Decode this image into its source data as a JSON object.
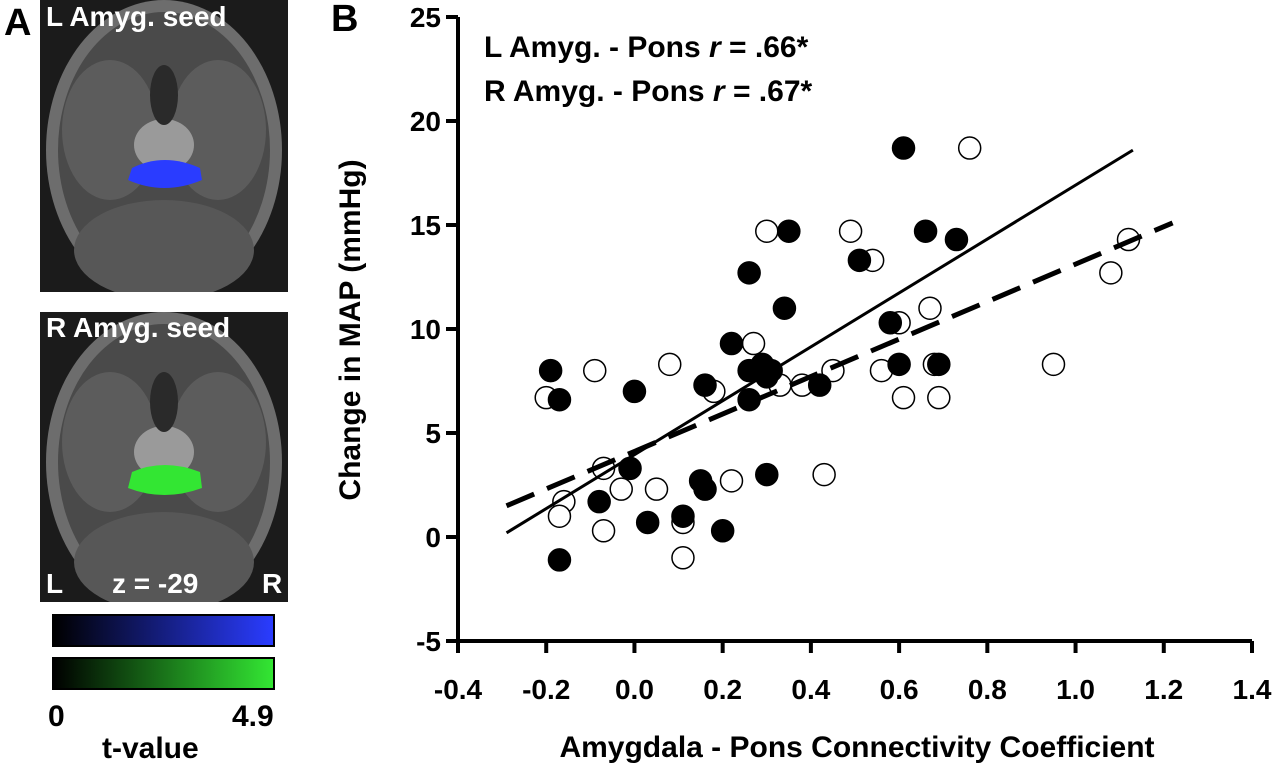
{
  "panel_a": {
    "label": "A",
    "top_seed_label": "L Amyg. seed",
    "bottom_seed_label": "R Amyg. seed",
    "orientation_left": "L",
    "orientation_right": "R",
    "slice_label": "z = -29",
    "colorbar": {
      "min_label": "0",
      "max_label": "4.9",
      "title": "t-value",
      "left_seed_color": "#2a3cff",
      "right_seed_color": "#33e633"
    }
  },
  "panel_b": {
    "label": "B",
    "annotation_line1_prefix": "L Amyg. - Pons ",
    "annotation_line2_prefix": "R Amyg. - Pons ",
    "annotation_r_symbol": "r",
    "annotation_line1_value": " = .66*",
    "annotation_line2_value": " = .67*"
  },
  "chart_data": {
    "type": "scatter",
    "xlabel": "Amygdala - Pons Connectivity Coefficient",
    "ylabel": "Change in MAP (mmHg)",
    "xlim": [
      -0.4,
      1.4
    ],
    "ylim": [
      -5,
      25
    ],
    "xticks": [
      -0.4,
      -0.2,
      0.0,
      0.2,
      0.4,
      0.6,
      0.8,
      1.0,
      1.2,
      1.4
    ],
    "xtick_labels": [
      "-0.4",
      "-0.2",
      "0.0",
      "0.2",
      "0.4",
      "0.6",
      "0.8",
      "1.0",
      "1.2",
      "1.4"
    ],
    "yticks": [
      -5,
      0,
      5,
      10,
      15,
      20,
      25
    ],
    "ytick_labels": [
      "-5",
      "0",
      "5",
      "10",
      "15",
      "20",
      "25"
    ],
    "series": [
      {
        "marker": "filled-circle",
        "color": "#000000",
        "points": [
          [
            -0.19,
            8.0
          ],
          [
            -0.17,
            6.6
          ],
          [
            -0.17,
            -1.1
          ],
          [
            -0.08,
            1.7
          ],
          [
            0.0,
            7.0
          ],
          [
            -0.01,
            3.3
          ],
          [
            0.03,
            0.7
          ],
          [
            0.11,
            1.0
          ],
          [
            0.16,
            7.3
          ],
          [
            0.15,
            2.7
          ],
          [
            0.16,
            2.3
          ],
          [
            0.2,
            0.3
          ],
          [
            0.22,
            9.3
          ],
          [
            0.26,
            12.7
          ],
          [
            0.26,
            8.0
          ],
          [
            0.26,
            6.6
          ],
          [
            0.29,
            8.3
          ],
          [
            0.3,
            7.7
          ],
          [
            0.31,
            8.0
          ],
          [
            0.3,
            3.0
          ],
          [
            0.34,
            11.0
          ],
          [
            0.35,
            14.7
          ],
          [
            0.42,
            7.3
          ],
          [
            0.51,
            13.3
          ],
          [
            0.58,
            10.3
          ],
          [
            0.6,
            8.3
          ],
          [
            0.61,
            18.7
          ],
          [
            0.66,
            14.7
          ],
          [
            0.69,
            8.3
          ],
          [
            0.73,
            14.3
          ]
        ]
      },
      {
        "marker": "open-circle",
        "color": "#000000",
        "points": [
          [
            -0.2,
            6.7
          ],
          [
            -0.16,
            1.7
          ],
          [
            -0.17,
            1.0
          ],
          [
            -0.09,
            8.0
          ],
          [
            -0.07,
            0.3
          ],
          [
            -0.07,
            3.3
          ],
          [
            -0.03,
            2.3
          ],
          [
            0.05,
            2.3
          ],
          [
            0.08,
            8.3
          ],
          [
            0.11,
            0.7
          ],
          [
            0.11,
            -1.0
          ],
          [
            0.18,
            7.0
          ],
          [
            0.22,
            2.7
          ],
          [
            0.27,
            9.3
          ],
          [
            0.3,
            14.7
          ],
          [
            0.33,
            7.3
          ],
          [
            0.38,
            7.3
          ],
          [
            0.43,
            3.0
          ],
          [
            0.45,
            8.0
          ],
          [
            0.49,
            14.7
          ],
          [
            0.54,
            13.3
          ],
          [
            0.56,
            8.0
          ],
          [
            0.6,
            10.3
          ],
          [
            0.61,
            6.7
          ],
          [
            0.67,
            11.0
          ],
          [
            0.68,
            8.3
          ],
          [
            0.69,
            6.7
          ],
          [
            0.76,
            18.7
          ],
          [
            0.95,
            8.3
          ],
          [
            1.08,
            12.7
          ],
          [
            1.12,
            14.3
          ]
        ]
      }
    ],
    "fit_lines": [
      {
        "style": "solid",
        "x": [
          -0.29,
          1.13
        ],
        "y": [
          0.2,
          18.6
        ]
      },
      {
        "style": "dashed",
        "x": [
          -0.29,
          1.22
        ],
        "y": [
          1.5,
          15.1
        ]
      }
    ]
  }
}
